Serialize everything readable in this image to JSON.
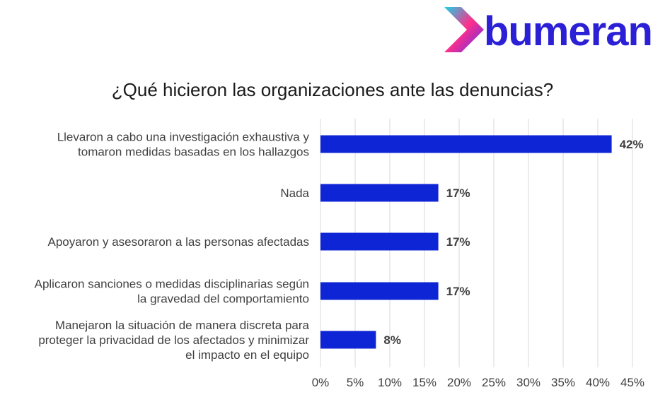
{
  "brand": {
    "name": "bumeran",
    "colors": {
      "wordmark": "#2b20d6",
      "chevron_pink": "#ff2f8a",
      "chevron_cyan": "#19d3e8",
      "chevron_violet": "#5b2cf0"
    }
  },
  "chart_data": {
    "type": "bar",
    "orientation": "horizontal",
    "title": "¿Qué hicieron las organizaciones ante las denuncias?",
    "categories": [
      [
        "Llevaron a cabo una investigación exhaustiva y",
        "tomaron medidas basadas en los hallazgos"
      ],
      [
        "Nada"
      ],
      [
        "Apoyaron y asesoraron a las personas afectadas"
      ],
      [
        "Aplicaron sanciones o medidas disciplinarias según",
        "la gravedad del comportamiento"
      ],
      [
        "Manejaron la situación de manera discreta para",
        "proteger la privacidad de los afectados y minimizar",
        "el impacto en el equipo"
      ]
    ],
    "values": [
      42,
      17,
      17,
      17,
      8
    ],
    "data_labels": [
      "42%",
      "17%",
      "17%",
      "17%",
      "8%"
    ],
    "xlim": [
      0,
      45
    ],
    "xticks": [
      "0%",
      "5%",
      "10%",
      "15%",
      "20%",
      "25%",
      "30%",
      "35%",
      "40%",
      "45%"
    ],
    "grid": "vertical",
    "bar_color": "#0d25d4",
    "grid_color": "#d9d9d9"
  }
}
